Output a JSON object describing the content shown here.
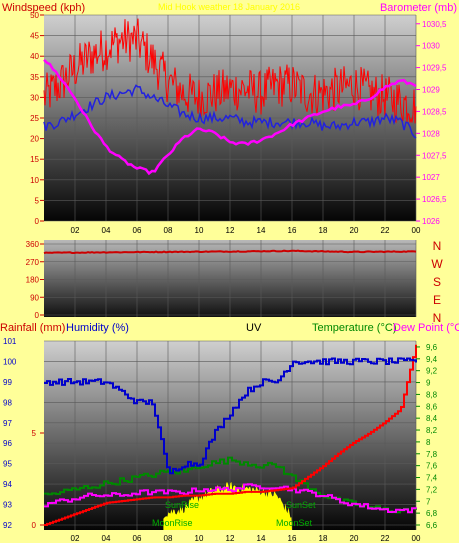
{
  "colors": {
    "background": "#ffff99",
    "wind_gust": "#ff0000",
    "wind_avg": "#2222dd",
    "barometer": "#ff00ff",
    "direction": "#cc0000",
    "rainfall": "#ff0000",
    "humidity": "#0000cc",
    "uv": "#ffff00",
    "temperature": "#008800",
    "dew_point": "#ff00ff",
    "tick_label": "#cc0000",
    "label_blue": "#0000cc",
    "label_green": "#008800"
  },
  "top_chart": {
    "left_label": "Windspeed (kph)",
    "right_label": "Barometer (mb)",
    "center_title": "Mid Hook weather 18 January 2016",
    "left_ticks": [
      "0",
      "5",
      "10",
      "15",
      "20",
      "25",
      "30",
      "35",
      "40",
      "45",
      "50"
    ],
    "right_ticks": [
      "1026",
      "1026,5",
      "1027",
      "1027,5",
      "1028",
      "1028,5",
      "1029",
      "1029,5",
      "1030",
      "1030,5"
    ],
    "x_ticks": [
      "02",
      "04",
      "06",
      "08",
      "10",
      "12",
      "14",
      "16",
      "18",
      "20",
      "22",
      "00"
    ]
  },
  "direction_chart": {
    "ticks": [
      "0",
      "90",
      "180",
      "270",
      "360"
    ],
    "compass": [
      "N",
      "W",
      "S",
      "E",
      "N"
    ],
    "value_deg": 315
  },
  "bottom_chart": {
    "rain_label": "Rainfall (mm)",
    "humidity_label": "Humidity (%)",
    "uv_label": "UV",
    "temperature_label": "Temperature (°C)",
    "dewpoint_label": "Dew Point (°C)",
    "rain_ticks": [
      "0",
      "5"
    ],
    "humidity_ticks": [
      "92",
      "93",
      "94",
      "95",
      "96",
      "97",
      "98",
      "99",
      "100",
      "101"
    ],
    "temp_ticks": [
      "6,6",
      "6,8",
      "7",
      "7,2",
      "7,4",
      "7,6",
      "7,8",
      "8",
      "8,2",
      "8,4",
      "8,6",
      "8,8",
      "9",
      "9,2",
      "9,4",
      "9,6"
    ],
    "sun_rise": "SunRise",
    "moon_rise": "MoonRise",
    "sun_set": "SunSet",
    "moon_set": "MoonSet",
    "x_ticks": [
      "02",
      "04",
      "06",
      "08",
      "10",
      "12",
      "14",
      "16",
      "18",
      "20",
      "22",
      "00"
    ]
  },
  "chart_data": [
    {
      "type": "line",
      "title": "Mid Hook weather 18 January 2016",
      "x_hours": [
        0,
        1,
        2,
        3,
        4,
        5,
        6,
        7,
        8,
        9,
        10,
        11,
        12,
        13,
        14,
        15,
        16,
        17,
        18,
        19,
        20,
        21,
        22,
        23,
        24
      ],
      "series": [
        {
          "name": "Windspeed (kph)",
          "values": [
            30,
            33,
            37,
            40,
            42,
            44,
            44,
            39,
            34,
            31,
            30,
            31,
            32,
            32,
            31,
            33,
            33,
            31,
            31,
            32,
            33,
            31,
            30,
            29,
            28
          ]
        },
        {
          "name": "",
          "values": [
            23,
            24,
            26,
            28,
            30,
            31,
            32,
            30,
            28,
            26,
            25,
            25,
            25,
            24,
            24,
            24,
            24,
            24,
            23,
            23,
            24,
            24,
            25,
            24,
            21
          ]
        },
        {
          "name": "Barometer (mb)",
          "values": [
            1029.7,
            1029.3,
            1028.8,
            1028.2,
            1027.7,
            1027.4,
            1027.2,
            1027.1,
            1027.5,
            1027.9,
            1028.1,
            1028.0,
            1027.8,
            1027.75,
            1027.85,
            1028.0,
            1028.2,
            1028.35,
            1028.5,
            1028.6,
            1028.65,
            1028.8,
            1029.05,
            1029.2,
            1029.1
          ]
        }
      ],
      "ylim_left": [
        0,
        50
      ],
      "ylim_right": [
        1026,
        1030.7
      ]
    },
    {
      "type": "line",
      "x_hours": [
        0,
        4,
        8,
        12,
        16,
        20,
        24
      ],
      "series": [
        {
          "name": "",
          "values": [
            315,
            318,
            320,
            322,
            325,
            320,
            322
          ]
        }
      ],
      "ylim": [
        0,
        360
      ]
    },
    {
      "type": "line",
      "x_hours": [
        0,
        1,
        2,
        3,
        4,
        5,
        6,
        7,
        8,
        9,
        10,
        11,
        12,
        13,
        14,
        15,
        16,
        17,
        18,
        19,
        20,
        21,
        22,
        23,
        24
      ],
      "series": [
        {
          "name": "Humidity (%)",
          "values": [
            99,
            99,
            99,
            99,
            99,
            98.5,
            98,
            98,
            94.5,
            95,
            95,
            96.5,
            97.5,
            98.5,
            99,
            99,
            100,
            100,
            100,
            100,
            100,
            100,
            100,
            100,
            100
          ]
        },
        {
          "name": "Rainfall (mm)",
          "values": [
            0,
            0.3,
            0.6,
            0.9,
            1.2,
            1.3,
            1.4,
            1.5,
            1.5,
            1.6,
            1.6,
            1.7,
            1.7,
            1.8,
            1.8,
            1.9,
            2.0,
            2.6,
            3.2,
            3.9,
            4.5,
            5.0,
            5.6,
            6.3,
            9.8
          ]
        },
        {
          "name": "Temperature (°C)",
          "values": [
            7.1,
            7.15,
            7.2,
            7.25,
            7.3,
            7.35,
            7.4,
            7.45,
            7.5,
            7.5,
            7.6,
            7.65,
            7.7,
            7.65,
            7.6,
            7.6,
            7.4,
            7.25,
            7.1,
            7.0,
            6.95,
            6.9,
            6.85,
            6.85,
            6.85
          ]
        },
        {
          "name": "Dew Point (°C)",
          "values": [
            6.95,
            7.0,
            7.05,
            7.1,
            7.1,
            7.1,
            7.15,
            7.15,
            7.15,
            7.15,
            7.2,
            7.2,
            7.2,
            7.25,
            7.25,
            7.25,
            7.2,
            7.15,
            7.1,
            7.0,
            6.95,
            6.9,
            6.85,
            6.85,
            6.85
          ]
        },
        {
          "name": "UV",
          "values": [
            0,
            0,
            0,
            0,
            0,
            0,
            0,
            0,
            0.2,
            0.4,
            0.9,
            1.2,
            1.4,
            1.3,
            1.2,
            1.0,
            0,
            0,
            0,
            0,
            0,
            0,
            0,
            0,
            0
          ]
        }
      ],
      "ylim_humidity": [
        92,
        101
      ],
      "ylim_temp": [
        6.6,
        9.7
      ]
    }
  ]
}
